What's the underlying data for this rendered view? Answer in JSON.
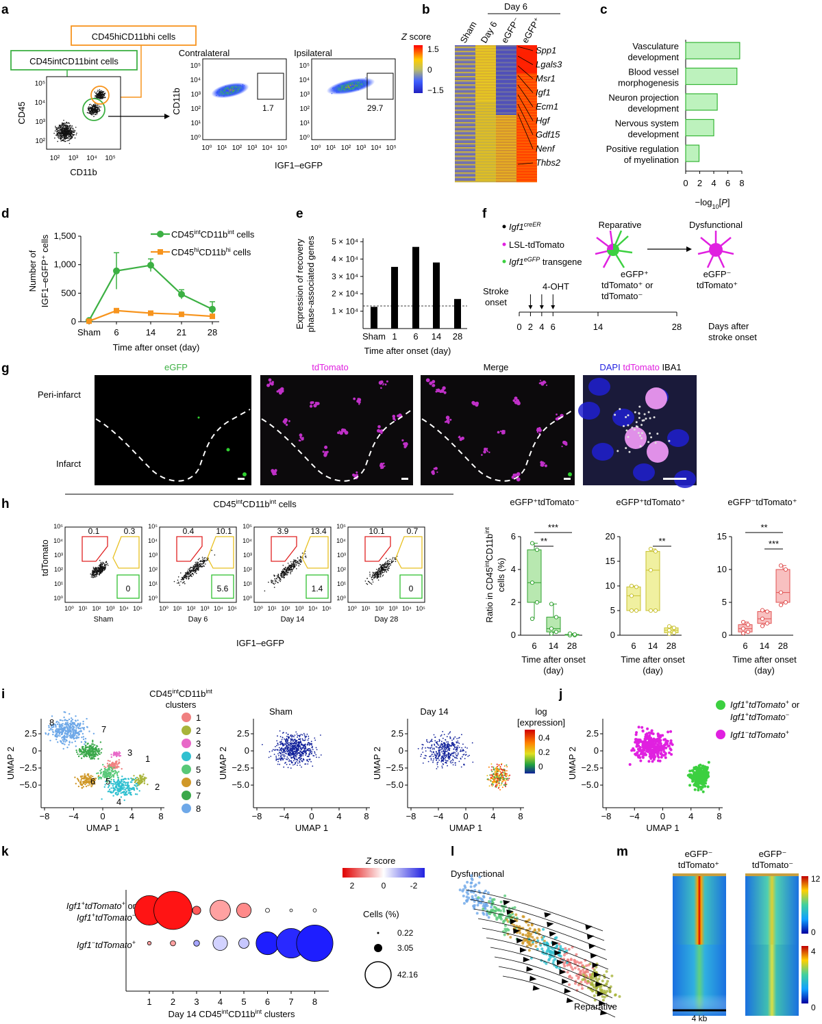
{
  "panel_labels": {
    "a": "a",
    "b": "b",
    "c": "c",
    "d": "d",
    "e": "e",
    "f": "f",
    "g": "g",
    "h": "h",
    "i": "i",
    "j": "j",
    "k": "k",
    "l": "l",
    "m": "m"
  },
  "panel_a": {
    "box_hi": "CD45hiCD11bhi cells",
    "box_int": "CD45intCD11bint cells",
    "ylabel": "CD45",
    "xlabel": "CD11b",
    "log_ticks": [
      "10²",
      "10³",
      "10⁴",
      "10⁵"
    ],
    "contra_title": "Contralateral",
    "ipsi_title": "Ipsilateral",
    "facs_ylabel": "CD11b",
    "facs_xlabel": "IGF1–eGFP",
    "facs_yticks": [
      "10⁰",
      "10¹",
      "10²",
      "10³",
      "10⁴",
      "10⁵"
    ],
    "facs_xticks": [
      "10⁰",
      "10¹",
      "10²",
      "10³",
      "10⁴",
      "10⁵"
    ],
    "contra_pct": "1.7",
    "ipsi_pct": "29.7"
  },
  "panel_b": {
    "day6": "Day 6",
    "zscore": "Z score",
    "z_ticks": [
      "1.5",
      "0",
      "−1.5"
    ],
    "columns": [
      "Sham",
      "Day 6",
      "eGFP⁻",
      "eGFP⁺"
    ],
    "genes": [
      "Spp1",
      "Lgals3",
      "Msr1",
      "Igf1",
      "Ecm1",
      "Hgf",
      "Gdf15",
      "Nenf",
      "Thbs2"
    ]
  },
  "panel_c": {
    "xlabel": "−log10[P]",
    "chart_data": {
      "type": "bar",
      "orientation": "horizontal",
      "categories": [
        "Vasculature development",
        "Blood vessel morphogenesis",
        "Neuron projection development",
        "Nervous system development",
        "Positive regulation of myelination"
      ],
      "category_lines": [
        [
          "Vasculature",
          "development"
        ],
        [
          "Blood vessel",
          "morphogenesis"
        ],
        [
          "Neuron projection",
          "development"
        ],
        [
          "Nervous system",
          "development"
        ],
        [
          "Positive regulation",
          "of myelination"
        ]
      ],
      "values": [
        7.7,
        7.3,
        4.5,
        4.0,
        1.9
      ],
      "xlim": [
        0,
        8
      ],
      "xticks": [
        "0",
        "2",
        "4",
        "6",
        "8"
      ],
      "color": "#bdf2bd",
      "edge": "#35b535"
    }
  },
  "panel_d": {
    "ylabel_1": "Number of",
    "ylabel_2": "IGF1–eGFP⁺ cells",
    "xlabel": "Time after onset (day)",
    "chart_data": {
      "type": "line",
      "categories": [
        "Sham",
        "6",
        "14",
        "21",
        "28"
      ],
      "yticks": [
        "0",
        "500",
        "1,000",
        "1,500"
      ],
      "ylim": [
        0,
        1500
      ],
      "series": [
        {
          "name": "CD45intCD11bint cells",
          "values": [
            20,
            890,
            990,
            480,
            220
          ],
          "errors": [
            10,
            320,
            110,
            80,
            130
          ],
          "color": "#3cb043"
        },
        {
          "name": "CD45hiCD11bhi cells",
          "values": [
            10,
            195,
            150,
            130,
            95
          ],
          "errors": [
            5,
            20,
            15,
            15,
            10
          ],
          "color": "#f7941d"
        }
      ]
    }
  },
  "panel_e": {
    "ylabel_1": "Expression of recovery",
    "ylabel_2": "phase-associated genes",
    "xlabel": "Time after onset (day)",
    "chart_data": {
      "type": "bar",
      "categories": [
        "Sham",
        "1",
        "6",
        "14",
        "28"
      ],
      "values": [
        12500,
        35500,
        47000,
        38000,
        17000
      ],
      "ylim": [
        0,
        52000
      ],
      "yticks": [
        "1 × 10⁴",
        "2 × 10⁴",
        "3 × 10⁴",
        "4 × 10⁴",
        "5 × 10⁴"
      ],
      "ytick_values": [
        10000,
        20000,
        30000,
        40000,
        50000
      ],
      "reference_line": 13000
    }
  },
  "panel_f": {
    "legend": [
      "Igf1creER",
      "LSL-tdTomato",
      "Igf1eGFP transgene"
    ],
    "reparative": "Reparative",
    "dysfunctional": "Dysfunctional",
    "rep_lab1": "eGFP⁺",
    "rep_lab2": "tdTomato⁺ or",
    "rep_lab3": "tdTomato⁻",
    "dys_lab1": "eGFP⁻",
    "dys_lab2": "tdTomato⁺",
    "stroke_1": "Stroke",
    "stroke_2": "onset",
    "ohtp": "4-OHT",
    "days": [
      "0",
      "2",
      "4",
      "6",
      "14",
      "28"
    ],
    "days_after_1": "Days after",
    "days_after_2": "stroke onset"
  },
  "panel_g": {
    "titles": [
      "eGFP",
      "tdTomato",
      "Merge"
    ],
    "dapi": "DAPI",
    "tdtom": "tdTomato",
    "iba1": "IBA1",
    "peri": "Peri-infarct",
    "infarct": "Infarct"
  },
  "panel_h": {
    "header": "CD45intCD11bint cells",
    "ylabel": "tdTomato",
    "xlabel": "IGF1–eGFP",
    "samples": [
      "Sham",
      "Day 6",
      "Day 14",
      "Day 28"
    ],
    "red_pct": [
      "0.1",
      "0.4",
      "3.9",
      "10.1"
    ],
    "yellow_pct": [
      "0.3",
      "10.1",
      "13.4",
      "0.7"
    ],
    "green_pct": [
      "0",
      "5.6",
      "1.4",
      "0"
    ],
    "box_titles": [
      "eGFP⁺tdTomato⁻",
      "eGFP⁺tdTomato⁺",
      "eGFP⁻tdTomato⁺"
    ],
    "box_ylabel_1": "Ratio in CD45intCD11bint",
    "box_ylabel_2": "cells (%)",
    "box_xlabel_1": "Time after onset",
    "box_xlabel_2": "(day)",
    "box_x": [
      "6",
      "14",
      "28"
    ],
    "box_yticks": [
      [
        "0",
        "2",
        "4",
        "6"
      ],
      [
        "0",
        "5",
        "10",
        "15",
        "20"
      ],
      [
        "0",
        "5",
        "10",
        "15"
      ]
    ],
    "sig": [
      [
        "**",
        "***"
      ],
      [
        "**"
      ],
      [
        "***",
        "**"
      ]
    ],
    "chart_data": [
      {
        "type": "box",
        "title": "eGFP⁺tdTomato⁻",
        "categories": [
          "6",
          "14",
          "28"
        ],
        "ylim": [
          0,
          6
        ],
        "median": [
          3.2,
          0.4,
          0.0
        ],
        "q1": [
          2.0,
          0.2,
          0.0
        ],
        "q3": [
          5.2,
          1.1,
          0.05
        ],
        "min": [
          1.0,
          0.1,
          0.0
        ],
        "max": [
          5.6,
          1.9,
          0.1
        ]
      },
      {
        "type": "box",
        "title": "eGFP⁺tdTomato⁺",
        "categories": [
          "6",
          "14",
          "28"
        ],
        "ylim": [
          0,
          20
        ],
        "median": [
          8.0,
          13.2,
          1.0
        ],
        "q1": [
          5.0,
          5.0,
          0.5
        ],
        "q3": [
          9.8,
          17.0,
          1.5
        ],
        "min": [
          5.0,
          5.0,
          0.3
        ],
        "max": [
          10.0,
          17.5,
          1.8
        ]
      },
      {
        "type": "box",
        "title": "eGFP⁻tdTomato⁺",
        "categories": [
          "6",
          "14",
          "28"
        ],
        "ylim": [
          0,
          15
        ],
        "median": [
          1.0,
          2.5,
          6.5
        ],
        "q1": [
          0.5,
          1.8,
          5.0
        ],
        "q3": [
          1.6,
          3.6,
          10.0
        ],
        "min": [
          0.3,
          1.4,
          4.6
        ],
        "max": [
          2.0,
          3.8,
          10.6
        ]
      }
    ]
  },
  "panel_i": {
    "legend_title_1": "CD45intCD11bint",
    "legend_title_2": "clusters",
    "clusters": [
      "1",
      "2",
      "3",
      "4",
      "5",
      "6",
      "7",
      "8"
    ],
    "cluster_colors": [
      "#f08080",
      "#a8b43a",
      "#e868c8",
      "#30c0d0",
      "#58c878",
      "#d09828",
      "#3aa84a",
      "#6ea8e8"
    ],
    "sham": "Sham",
    "day14": "Day 14",
    "xlabel": "UMAP 1",
    "ylabel": "UMAP 2",
    "xticks": [
      "−8",
      "−4",
      "0",
      "4",
      "8"
    ],
    "yticks": [
      "2.5",
      "0",
      "−2.5",
      "−5.0"
    ],
    "cbar_title_1": "log",
    "cbar_title_2": "[expression]",
    "cbar_ticks": [
      "0.4",
      "0.2",
      "0"
    ]
  },
  "panel_j": {
    "legend_1a": "Igf1⁺tdTomato⁺ or",
    "legend_1b": "Igf1⁺tdTomato⁻",
    "legend_2": "Igf1⁻tdTomato⁺",
    "xlabel": "UMAP 1",
    "ylabel": "UMAP 2"
  },
  "panel_k": {
    "zscore": "Z score",
    "z_ticks": [
      "2",
      "0",
      "-2"
    ],
    "cells": "Cells (%)",
    "size_legend": [
      "0.22",
      "3.05",
      "42.16"
    ],
    "row_1a": "Igf1⁺tdTomato⁺ or",
    "row_1b": "Igf1⁺tdTomato⁻",
    "row_2": "Igf1⁻tdTomato⁺",
    "xlabel": "Day 14 CD45intCD11bint clusters",
    "chart_data": {
      "type": "dot",
      "categories": [
        "1",
        "2",
        "3",
        "4",
        "5",
        "6",
        "7",
        "8"
      ],
      "series": [
        {
          "row": "Igf1+tdTomato+ or Igf1+tdTomato-",
          "size_pct": [
            25,
            42,
            2,
            12,
            6,
            0.5,
            0.22,
            0.3
          ],
          "zscore": [
            2,
            2,
            1.4,
            0.8,
            1.0,
            0.0,
            0.0,
            0.0
          ]
        },
        {
          "row": "Igf1-tdTomato+",
          "size_pct": [
            0.4,
            0.8,
            1.0,
            6.0,
            3.0,
            15,
            25,
            38
          ],
          "zscore": [
            0.8,
            0.8,
            -0.8,
            -0.4,
            -0.5,
            -2,
            -1.9,
            -2
          ]
        }
      ]
    }
  },
  "panel_l": {
    "dysfunctional": "Dysfunctional",
    "reparative": "Reparative"
  },
  "panel_m": {
    "col1_1": "eGFP⁻",
    "col1_2": "tdTomato⁺",
    "col2_1": "eGFP⁻",
    "col2_2": "tdTomato⁻",
    "cbar1": [
      "12",
      "0"
    ],
    "cbar2": [
      "4",
      "0"
    ],
    "scale": "4 kb"
  }
}
